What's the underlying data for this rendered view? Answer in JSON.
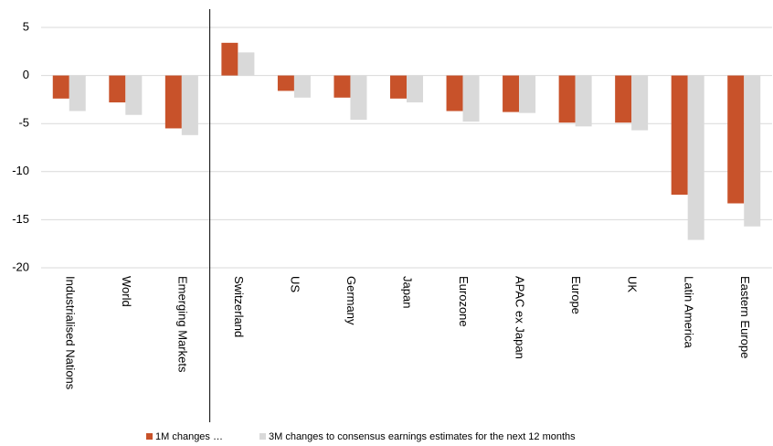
{
  "chart_data": {
    "type": "bar",
    "categories": [
      "Industrialised Nations",
      "World",
      "Emerging Markets",
      "Switzerland",
      "US",
      "Germany",
      "Japan",
      "Eurozone",
      "APAC ex Japan",
      "Europe",
      "UK",
      "Latin America",
      "Eastern Europe"
    ],
    "series": [
      {
        "name": "1M changes …",
        "color": "#c8522a",
        "values": [
          -2.4,
          -2.8,
          -5.5,
          3.4,
          -1.6,
          -2.3,
          -2.4,
          -3.7,
          -3.8,
          -4.9,
          -4.9,
          -12.4,
          -13.3
        ]
      },
      {
        "name": "3M changes to consensus earnings estimates for the next 12 months",
        "color": "#d9d9d9",
        "values": [
          -3.7,
          -4.1,
          -6.2,
          2.4,
          -2.3,
          -4.6,
          -2.8,
          -4.8,
          -3.9,
          -5.3,
          -5.7,
          -17.1,
          -15.7
        ]
      }
    ],
    "ylim": [
      -20,
      5
    ],
    "yticks": [
      -20,
      -15,
      -10,
      -5,
      0,
      5
    ],
    "grid": true
  }
}
